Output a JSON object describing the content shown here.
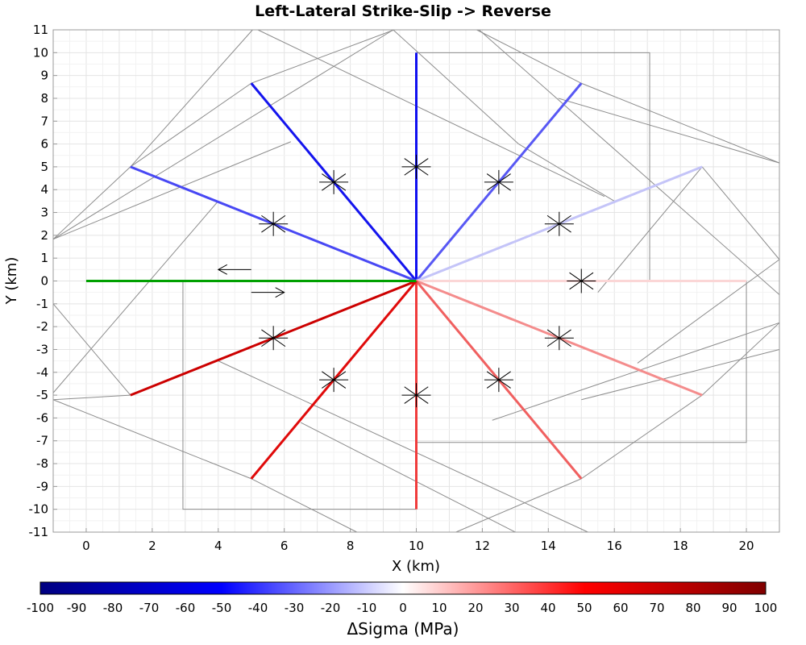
{
  "chart_data": {
    "type": "line",
    "title": "Left-Lateral Strike-Slip -> Reverse",
    "xlabel": "X (km)",
    "ylabel": "Y (km)",
    "xlim": [
      -1,
      21
    ],
    "ylim": [
      -11,
      11
    ],
    "xticks": [
      0,
      2,
      4,
      6,
      8,
      10,
      12,
      14,
      16,
      18,
      20
    ],
    "yticks": [
      11,
      10,
      9,
      8,
      7,
      6,
      5,
      4,
      3,
      2,
      1,
      0,
      -1,
      -2,
      -3,
      -4,
      -5,
      -6,
      -7,
      -8,
      -9,
      -10,
      -11
    ],
    "grid": true,
    "colorbar": {
      "label": "ΔSigma (MPa)",
      "range": [
        -100,
        100
      ],
      "ticks": [
        -100,
        -90,
        -80,
        -70,
        -60,
        -50,
        -40,
        -30,
        -20,
        -10,
        0,
        10,
        20,
        30,
        40,
        50,
        60,
        70,
        80,
        90,
        100
      ],
      "colors": [
        "#000080",
        "#0000ff",
        "#ffffff",
        "#ff0000",
        "#800000"
      ]
    },
    "source_fault": {
      "x": [
        0,
        10
      ],
      "y": [
        0,
        0
      ],
      "color": "#00a000",
      "slip_arrows": [
        {
          "x": [
            5,
            4
          ],
          "y": [
            0.5,
            0.5
          ]
        },
        {
          "x": [
            5,
            6
          ],
          "y": [
            -0.5,
            -0.5
          ]
        }
      ]
    },
    "receiver_faults": [
      {
        "angle_deg": 90,
        "x": [
          10,
          10
        ],
        "y": [
          0,
          10
        ],
        "delta_sigma": -50,
        "color": "#1010f0"
      },
      {
        "angle_deg": 120,
        "x": [
          10,
          5
        ],
        "y": [
          0,
          8.66
        ],
        "delta_sigma": -48,
        "color": "#1414ee"
      },
      {
        "angle_deg": 150,
        "x": [
          10,
          1.34
        ],
        "y": [
          0,
          5
        ],
        "delta_sigma": -38,
        "color": "#4848f4"
      },
      {
        "angle_deg": 60,
        "x": [
          10,
          15
        ],
        "y": [
          0,
          8.66
        ],
        "delta_sigma": -33,
        "color": "#5858f4"
      },
      {
        "angle_deg": 30,
        "x": [
          10,
          18.66
        ],
        "y": [
          0,
          5
        ],
        "delta_sigma": -13,
        "color": "#c4c4f8"
      },
      {
        "angle_deg": 0,
        "x": [
          10,
          20
        ],
        "y": [
          0,
          0
        ],
        "delta_sigma": 7,
        "color": "#fbd6d6"
      },
      {
        "angle_deg": -30,
        "x": [
          10,
          18.66
        ],
        "y": [
          0,
          -5
        ],
        "delta_sigma": 24,
        "color": "#f48c8c"
      },
      {
        "angle_deg": -60,
        "x": [
          10,
          15
        ],
        "y": [
          0,
          -8.66
        ],
        "delta_sigma": 32,
        "color": "#f06060"
      },
      {
        "angle_deg": -90,
        "x": [
          10,
          10
        ],
        "y": [
          0,
          -10
        ],
        "delta_sigma": 38,
        "color": "#f03c3c"
      },
      {
        "angle_deg": -120,
        "x": [
          10,
          5
        ],
        "y": [
          0,
          -8.66
        ],
        "delta_sigma": 52,
        "color": "#e00a0a"
      },
      {
        "angle_deg": -150,
        "x": [
          10,
          1.34
        ],
        "y": [
          0,
          -5
        ],
        "delta_sigma": 57,
        "color": "#cc0000"
      }
    ],
    "outlines": [
      [
        [
          10,
          0
        ],
        [
          17.07,
          0
        ],
        [
          17.07,
          10
        ],
        [
          10,
          10
        ]
      ],
      [
        [
          10,
          0
        ],
        [
          5,
          -8.66
        ],
        [
          2.93,
          -10
        ],
        [
          10,
          -10
        ]
      ],
      [
        [
          3.66,
          0
        ],
        [
          2.93,
          0
        ],
        [
          2.93,
          -10
        ],
        [
          10,
          -10
        ]
      ],
      [
        [
          10,
          0
        ],
        [
          20,
          0
        ],
        [
          20,
          -7.07
        ],
        [
          10,
          -7.07
        ]
      ]
    ],
    "rotated_planes": [
      [
        [
          1.34,
          5
        ],
        [
          5.04,
          11
        ],
        [
          10,
          0
        ],
        [
          5,
          8.66
        ],
        [
          9.33,
          11
        ]
      ],
      [
        [
          5,
          8.66
        ],
        [
          9.33,
          11
        ]
      ],
      [
        [
          11.83,
          11
        ],
        [
          15,
          8.66
        ],
        [
          21,
          5.17
        ]
      ],
      [
        [
          15,
          8.66
        ],
        [
          21,
          5.17
        ]
      ],
      [
        [
          18.66,
          5
        ],
        [
          21,
          0.94
        ]
      ],
      [
        [
          18.66,
          5
        ],
        [
          21,
          5.17
        ]
      ]
    ],
    "stress_symbols": [
      {
        "x": 7.5,
        "y": 4.33
      },
      {
        "x": 10,
        "y": 5
      },
      {
        "x": 12.5,
        "y": 4.33
      },
      {
        "x": 5.67,
        "y": 2.5
      },
      {
        "x": 14.33,
        "y": 2.5
      },
      {
        "x": 15,
        "y": 0
      },
      {
        "x": 5.67,
        "y": -2.5
      },
      {
        "x": 14.33,
        "y": -2.5
      },
      {
        "x": 7.5,
        "y": -4.33
      },
      {
        "x": 10,
        "y": -5
      },
      {
        "x": 12.5,
        "y": -4.33
      }
    ]
  }
}
